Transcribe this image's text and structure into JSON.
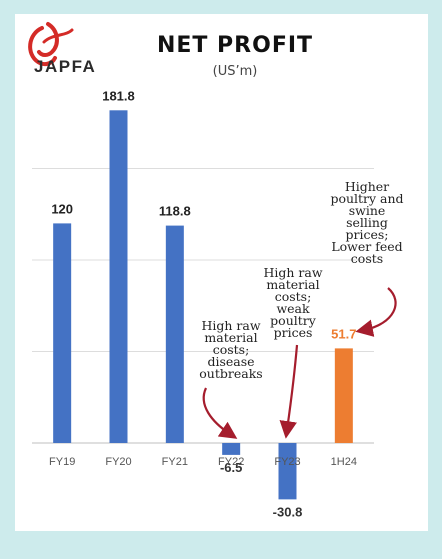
{
  "brand": {
    "name": "JAPFA"
  },
  "chart_data": {
    "type": "bar",
    "title": "NET PROFIT",
    "subtitle": "(US’m)",
    "categories": [
      "FY19",
      "FY20",
      "FY21",
      "FY22",
      "FY23",
      "1H24"
    ],
    "values": [
      120,
      181.8,
      118.8,
      -6.5,
      -30.8,
      51.7
    ],
    "value_labels": [
      "120",
      "181.8",
      "118.8",
      "-6.5",
      "-30.8",
      "51.7"
    ],
    "bar_colors": [
      "#4472c4",
      "#4472c4",
      "#4472c4",
      "#4472c4",
      "#4472c4",
      "#ed7d31"
    ],
    "ylim": [
      -35,
      200
    ],
    "grid": true,
    "xlabel": "",
    "ylabel": "",
    "annotations": [
      {
        "category": "FY22",
        "text": "High raw material costs; disease outbreaks"
      },
      {
        "category": "FY23",
        "text": "High raw material costs; weak poultry prices"
      },
      {
        "category": "1H24",
        "text": "Higher poultry and swine selling prices; Lower feed costs"
      }
    ]
  },
  "colors": {
    "background": "#cdebec",
    "card": "#ffffff",
    "arrow": "#a51d2d",
    "grid": "#dddddd"
  }
}
